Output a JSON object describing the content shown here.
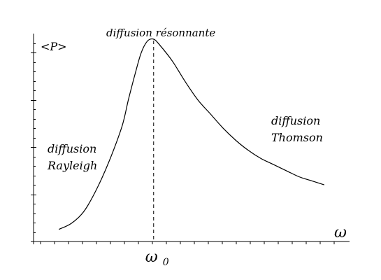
{
  "chart_data": {
    "type": "line",
    "title": "",
    "xlabel": "ω",
    "ylabel": "<P>",
    "x_tick_label": "ω0",
    "x_tick_label_base": "ω",
    "x_tick_label_sub": "0",
    "grid": false,
    "legend": "none",
    "series": [
      {
        "points": [
          [
            0.08,
            0.06
          ],
          [
            0.12,
            0.09
          ],
          [
            0.16,
            0.15
          ],
          [
            0.2,
            0.26
          ],
          [
            0.24,
            0.4
          ],
          [
            0.28,
            0.57
          ],
          [
            0.3,
            0.7
          ],
          [
            0.32,
            0.82
          ],
          [
            0.34,
            0.93
          ],
          [
            0.36,
            0.99
          ],
          [
            0.38,
            1.0
          ],
          [
            0.4,
            0.97
          ],
          [
            0.44,
            0.89
          ],
          [
            0.48,
            0.79
          ],
          [
            0.52,
            0.7
          ],
          [
            0.56,
            0.63
          ],
          [
            0.6,
            0.56
          ],
          [
            0.64,
            0.5
          ],
          [
            0.68,
            0.45
          ],
          [
            0.72,
            0.41
          ],
          [
            0.76,
            0.38
          ],
          [
            0.8,
            0.35
          ],
          [
            0.84,
            0.32
          ],
          [
            0.88,
            0.3
          ],
          [
            0.92,
            0.28
          ]
        ]
      }
    ],
    "resonance_marker_x": 0.38,
    "annotations": {
      "resonant": "diffusion résonnante",
      "rayleigh_line1": "diffusion",
      "rayleigh_line2": "Rayleigh",
      "thomson_line1": "diffusion",
      "thomson_line2": "Thomson"
    },
    "colors": {
      "curve": "#000000",
      "axes": "#000000",
      "background": "#ffffff"
    }
  }
}
